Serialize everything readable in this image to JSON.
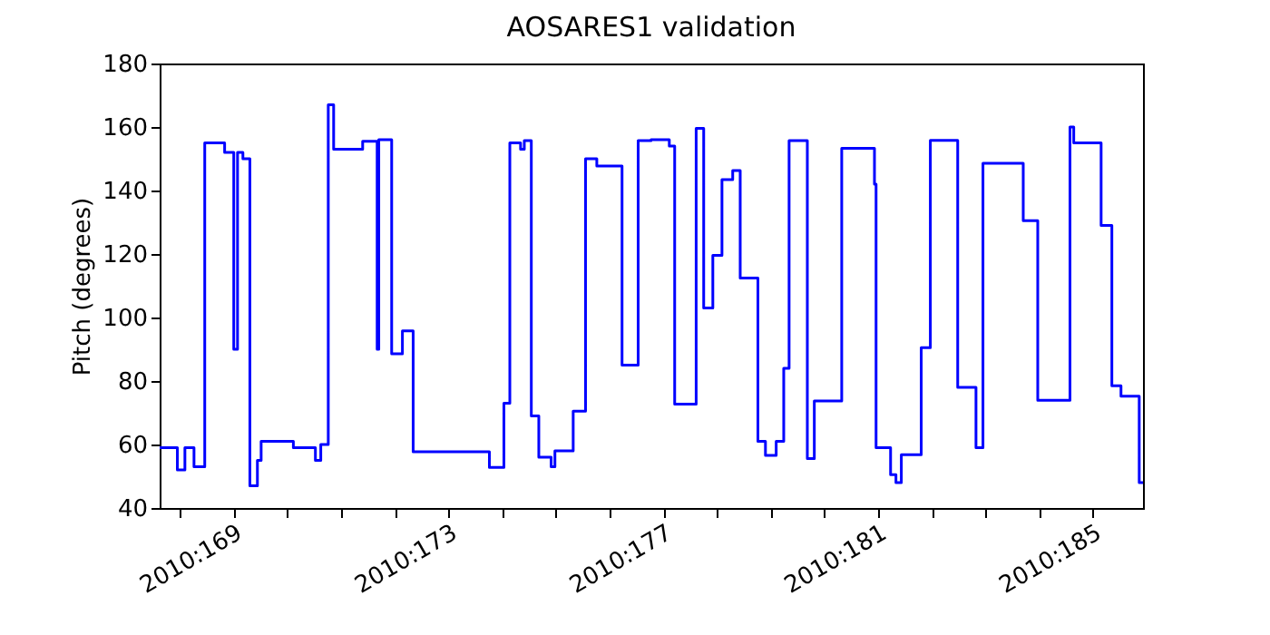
{
  "chart_data": {
    "type": "step",
    "title": "AOSARES1 validation",
    "ylabel": "Pitch (degrees)",
    "x": [
      "2010-06-16T14:53",
      "2010-06-16T22:48",
      "2010-06-17T02:10",
      "2010-06-17T06:14",
      "2010-06-17T11:02",
      "2010-06-17T19:55",
      "2010-06-18T00:00",
      "2010-06-18T01:41",
      "2010-06-18T04:05",
      "2010-06-18T07:12",
      "2010-06-18T10:34",
      "2010-06-18T12:14",
      "2010-06-19T02:38",
      "2010-06-19T12:29",
      "2010-06-19T14:53",
      "2010-06-19T18:14",
      "2010-06-19T20:38",
      "2010-06-20T09:36",
      "2010-06-20T16:05",
      "2010-06-20T16:48",
      "2010-06-20T22:34",
      "2010-06-21T03:22",
      "2010-06-21T08:10",
      "2010-06-22T18:14",
      "2010-06-23T00:43",
      "2010-06-23T03:22",
      "2010-06-23T08:10",
      "2010-06-23T09:50",
      "2010-06-23T12:58",
      "2010-06-23T16:19",
      "2010-06-23T21:50",
      "2010-06-23T23:31",
      "2010-06-24T07:41",
      "2010-06-24T13:12",
      "2010-06-24T18:14",
      "2010-06-25T05:31",
      "2010-06-25T12:43",
      "2010-06-25T18:29",
      "2010-06-26T02:38",
      "2010-06-26T05:02",
      "2010-06-26T14:38",
      "2010-06-26T18:00",
      "2010-06-26T22:05",
      "2010-06-27T02:10",
      "2010-06-27T06:58",
      "2010-06-27T10:19",
      "2010-06-27T18:14",
      "2010-06-27T21:36",
      "2010-06-28T02:24",
      "2010-06-28T05:46",
      "2010-06-28T08:10",
      "2010-06-28T16:19",
      "2010-06-28T19:26",
      "2010-06-29T07:41",
      "2010-06-29T22:19",
      "2010-06-29T23:02",
      "2010-06-30T05:31",
      "2010-06-30T07:55",
      "2010-06-30T10:19",
      "2010-06-30T19:12",
      "2010-06-30T23:17",
      "2010-07-01T11:31",
      "2010-07-01T19:41",
      "2010-07-01T22:48",
      "2010-07-02T16:48",
      "2010-07-02T23:17",
      "2010-07-03T13:41",
      "2010-07-03T15:22",
      "2010-07-04T03:36",
      "2010-07-04T08:24",
      "2010-07-04T12:29",
      "2010-07-04T20:38",
      "2010-07-04T22:19"
    ],
    "series": [
      {
        "color": "#0000ff",
        "values": [
          59,
          52,
          59,
          53,
          155,
          152,
          90,
          152,
          150,
          47,
          55,
          61,
          59,
          55,
          60,
          167,
          153,
          155.5,
          90,
          156,
          88.6,
          95.8,
          57.7,
          52.8,
          73,
          155,
          153,
          155.7,
          69,
          56,
          53,
          58,
          70.5,
          150,
          147.7,
          85,
          155.7,
          156,
          154,
          72.7,
          159.6,
          103,
          119.6,
          143.4,
          146.3,
          112.4,
          61,
          56.6,
          61,
          84,
          155.7,
          55.6,
          73.7,
          153.3,
          142,
          59,
          50.5,
          48,
          56.8,
          90.5,
          155.8,
          78,
          59,
          148.6,
          130.5,
          73.9,
          160,
          155,
          129,
          78.5,
          75.2,
          48,
          48
        ]
      }
    ],
    "xlim": [
      "2010-06-16T14:53",
      "2010-07-04T22:19"
    ],
    "xticks": [
      {
        "value": "2010-06-17",
        "label": null
      },
      {
        "value": "2010-06-18",
        "label": "2010:169"
      },
      {
        "value": "2010-06-19",
        "label": null
      },
      {
        "value": "2010-06-20",
        "label": null
      },
      {
        "value": "2010-06-21",
        "label": null
      },
      {
        "value": "2010-06-22",
        "label": "2010:173"
      },
      {
        "value": "2010-06-23",
        "label": null
      },
      {
        "value": "2010-06-24",
        "label": null
      },
      {
        "value": "2010-06-25",
        "label": null
      },
      {
        "value": "2010-06-26",
        "label": "2010:177"
      },
      {
        "value": "2010-06-27",
        "label": null
      },
      {
        "value": "2010-06-28",
        "label": null
      },
      {
        "value": "2010-06-29",
        "label": null
      },
      {
        "value": "2010-06-30",
        "label": "2010:181"
      },
      {
        "value": "2010-07-01",
        "label": null
      },
      {
        "value": "2010-07-02",
        "label": null
      },
      {
        "value": "2010-07-03",
        "label": null
      },
      {
        "value": "2010-07-04",
        "label": "2010:185"
      }
    ],
    "ylim": [
      40,
      180
    ],
    "yticks": [
      40,
      60,
      80,
      100,
      120,
      140,
      160,
      180
    ]
  }
}
